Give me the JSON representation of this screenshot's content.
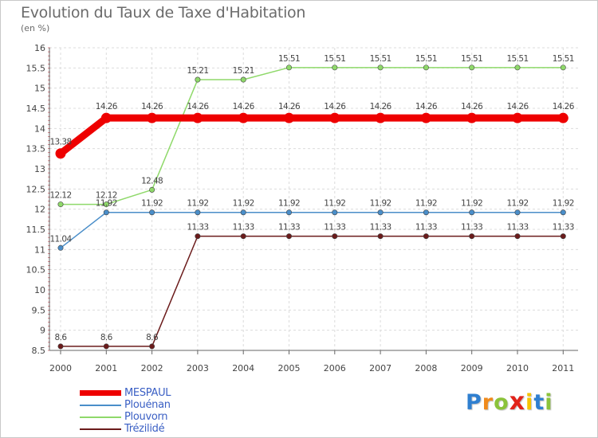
{
  "chart_data": {
    "type": "line",
    "title": "Evolution du Taux de Taxe d'Habitation",
    "ylabel": "(en %)",
    "xlabel": "",
    "categories": [
      "2000",
      "2001",
      "2002",
      "2003",
      "2004",
      "2005",
      "2006",
      "2007",
      "2008",
      "2009",
      "2010",
      "2011"
    ],
    "yticks": [
      "8.5",
      "9",
      "9.5",
      "10",
      "10.5",
      "11",
      "11.5",
      "12",
      "12.5",
      "13",
      "13.5",
      "14",
      "14.5",
      "15",
      "15.5",
      "16"
    ],
    "ylim": [
      8.5,
      16
    ],
    "series": [
      {
        "name": "MESPAUL",
        "color": "#ee0000",
        "values": [
          13.38,
          14.26,
          14.26,
          14.26,
          14.26,
          14.26,
          14.26,
          14.26,
          14.26,
          14.26,
          14.26,
          14.26
        ],
        "labels": [
          "13.38",
          "14.26",
          "14.26",
          "14.26",
          "14.26",
          "14.26",
          "14.26",
          "14.26",
          "14.26",
          "14.26",
          "14.26",
          "14.26"
        ]
      },
      {
        "name": "Plouénan",
        "color": "#4a8ec9",
        "values": [
          11.04,
          11.92,
          11.92,
          11.92,
          11.92,
          11.92,
          11.92,
          11.92,
          11.92,
          11.92,
          11.92,
          11.92
        ],
        "labels": [
          "11.04",
          "11.92",
          "11.92",
          "11.92",
          "11.92",
          "11.92",
          "11.92",
          "11.92",
          "11.92",
          "11.92",
          "11.92",
          "11.92"
        ]
      },
      {
        "name": "Plouvorn",
        "color": "#8fd96a",
        "values": [
          12.12,
          12.12,
          12.48,
          15.21,
          15.21,
          15.51,
          15.51,
          15.51,
          15.51,
          15.51,
          15.51,
          15.51
        ],
        "labels": [
          "12.12",
          "12.12",
          "12.48",
          "15.21",
          "15.21",
          "15.51",
          "15.51",
          "15.51",
          "15.51",
          "15.51",
          "15.51",
          "15.51"
        ]
      },
      {
        "name": "Trézilidé",
        "color": "#6b1b1b",
        "values": [
          8.6,
          8.6,
          8.6,
          11.33,
          11.33,
          11.33,
          11.33,
          11.33,
          11.33,
          11.33,
          11.33,
          11.33
        ],
        "labels": [
          "8.6",
          "8.6",
          "8.6",
          "11.33",
          "11.33",
          "11.33",
          "11.33",
          "11.33",
          "11.33",
          "11.33",
          "11.33",
          "11.33"
        ]
      }
    ],
    "legend_position": "bottom-left"
  },
  "logo": {
    "letters": [
      "P",
      "r",
      "o",
      "x",
      "i",
      "t",
      "i"
    ],
    "colors": [
      "#2f7fd0",
      "#f08a1c",
      "#8bc33a",
      "#e2231a",
      "#f6c400",
      "#2f7fd0",
      "#8bc33a"
    ]
  }
}
